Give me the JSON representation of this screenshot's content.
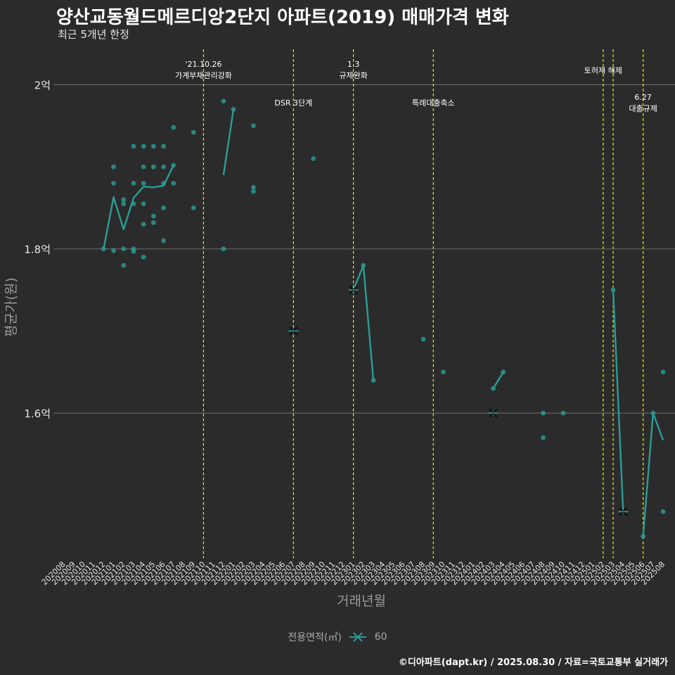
{
  "header": {
    "title": "양산교동월드메르디앙2단지 아파트(2019) 매매가격 변화",
    "subtitle": "최근 5개년 한정"
  },
  "footer": {
    "caption": "©디아파트(dapt.kr) / 2025.08.30 / 자료=국토교통부 실거래가"
  },
  "legend": {
    "title": "전용면적(㎡)",
    "items": [
      "60"
    ]
  },
  "colors": {
    "background": "#2b2b2b",
    "series": "#2a9d96",
    "event_line": "#e8e81e",
    "grid": "#6e6e6e"
  },
  "chart_data": {
    "type": "line",
    "xlabel": "거래년월",
    "ylabel": "평균가(원)",
    "ylim": [
      14300,
      20600
    ],
    "yticks": [
      {
        "value": 16000,
        "label": "1.6억"
      },
      {
        "value": 18000,
        "label": "1.8억"
      },
      {
        "value": 20000,
        "label": "2억"
      }
    ],
    "categories": [
      "202008",
      "202009",
      "202010",
      "202011",
      "202012",
      "202101",
      "202102",
      "202103",
      "202104",
      "202105",
      "202106",
      "202107",
      "202108",
      "202109",
      "202110",
      "202111",
      "202112",
      "202201",
      "202202",
      "202203",
      "202204",
      "202205",
      "202206",
      "202207",
      "202208",
      "202209",
      "202210",
      "202211",
      "202212",
      "202301",
      "202302",
      "202303",
      "202304",
      "202305",
      "202306",
      "202307",
      "202308",
      "202309",
      "202310",
      "202311",
      "202312",
      "202401",
      "202402",
      "202403",
      "202404",
      "202405",
      "202406",
      "202407",
      "202408",
      "202409",
      "202410",
      "202411",
      "202412",
      "202501",
      "202502",
      "202503",
      "202504",
      "202505",
      "202506",
      "202507",
      "202508"
    ],
    "series": [
      {
        "name": "60",
        "line_segments": [
          [
            [
              "202012",
              18000
            ],
            [
              "202101",
              18630
            ],
            [
              "202102",
              18240
            ],
            [
              "202103",
              18620
            ],
            [
              "202104",
              18760
            ],
            [
              "202105",
              18750
            ],
            [
              "202106",
              18770
            ],
            [
              "202107",
              19020
            ]
          ],
          [
            [
              "202112",
              18900
            ],
            [
              "202201",
              19700
            ]
          ],
          [
            [
              "202301",
              17500
            ],
            [
              "202302",
              17800
            ],
            [
              "202303",
              16400
            ]
          ],
          [
            [
              "202403",
              16300
            ],
            [
              "202404",
              16500
            ]
          ],
          [
            [
              "202503",
              17500
            ],
            [
              "202504",
              14800
            ]
          ],
          [
            [
              "202506",
              14500
            ],
            [
              "202507",
              16000
            ],
            [
              "202508",
              15670
            ]
          ]
        ],
        "single_month_marks": [
          [
            "202207",
            17000
          ],
          [
            "202301",
            17500
          ],
          [
            "202403",
            16000
          ],
          [
            "202504",
            14800
          ]
        ],
        "points": [
          [
            "202012",
            18000
          ],
          [
            "202101",
            18800
          ],
          [
            "202101",
            19000
          ],
          [
            "202101",
            17980
          ],
          [
            "202102",
            18550
          ],
          [
            "202102",
            18600
          ],
          [
            "202102",
            18000
          ],
          [
            "202102",
            17800
          ],
          [
            "202103",
            18800
          ],
          [
            "202103",
            19250
          ],
          [
            "202103",
            18550
          ],
          [
            "202103",
            18000
          ],
          [
            "202103",
            17970
          ],
          [
            "202104",
            19250
          ],
          [
            "202104",
            19000
          ],
          [
            "202104",
            18800
          ],
          [
            "202104",
            18550
          ],
          [
            "202104",
            18300
          ],
          [
            "202104",
            17900
          ],
          [
            "202105",
            19250
          ],
          [
            "202105",
            19000
          ],
          [
            "202105",
            18400
          ],
          [
            "202105",
            18320
          ],
          [
            "202106",
            19250
          ],
          [
            "202106",
            19000
          ],
          [
            "202106",
            18800
          ],
          [
            "202106",
            18500
          ],
          [
            "202106",
            18100
          ],
          [
            "202107",
            19480
          ],
          [
            "202107",
            19020
          ],
          [
            "202107",
            18800
          ],
          [
            "202109",
            19420
          ],
          [
            "202109",
            18500
          ],
          [
            "202112",
            19800
          ],
          [
            "202112",
            18000
          ],
          [
            "202201",
            19700
          ],
          [
            "202203",
            19500
          ],
          [
            "202203",
            18750
          ],
          [
            "202203",
            18700
          ],
          [
            "202207",
            17000
          ],
          [
            "202209",
            19100
          ],
          [
            "202301",
            17500
          ],
          [
            "202302",
            17800
          ],
          [
            "202303",
            16400
          ],
          [
            "202308",
            16900
          ],
          [
            "202310",
            16500
          ],
          [
            "202403",
            16000
          ],
          [
            "202403",
            16300
          ],
          [
            "202404",
            16500
          ],
          [
            "202408",
            16000
          ],
          [
            "202408",
            15700
          ],
          [
            "202410",
            16000
          ],
          [
            "202503",
            17500
          ],
          [
            "202504",
            14800
          ],
          [
            "202506",
            14500
          ],
          [
            "202507",
            16000
          ],
          [
            "202508",
            16500
          ],
          [
            "202508",
            14800
          ]
        ]
      }
    ],
    "events": [
      {
        "x": "202110",
        "label_lines": [
          "'21.10.26",
          "가계부채관리강화"
        ],
        "row": 1
      },
      {
        "x": "202207",
        "label_lines": [
          "DSR 3단계"
        ],
        "row": 2
      },
      {
        "x": "202301",
        "label_lines": [
          "1.3",
          "규제완화"
        ],
        "row": 1
      },
      {
        "x": "202309",
        "label_lines": [
          "특례대출축소"
        ],
        "row": 2
      },
      {
        "x": "202502",
        "label_lines": [],
        "row": 1
      },
      {
        "x": "202503",
        "label_lines": [
          "토허제 해제"
        ],
        "row": 1,
        "label_x_offset": -1
      },
      {
        "x": "202506",
        "label_lines": [
          "6.27",
          "대출규제"
        ],
        "row": 2
      }
    ]
  }
}
